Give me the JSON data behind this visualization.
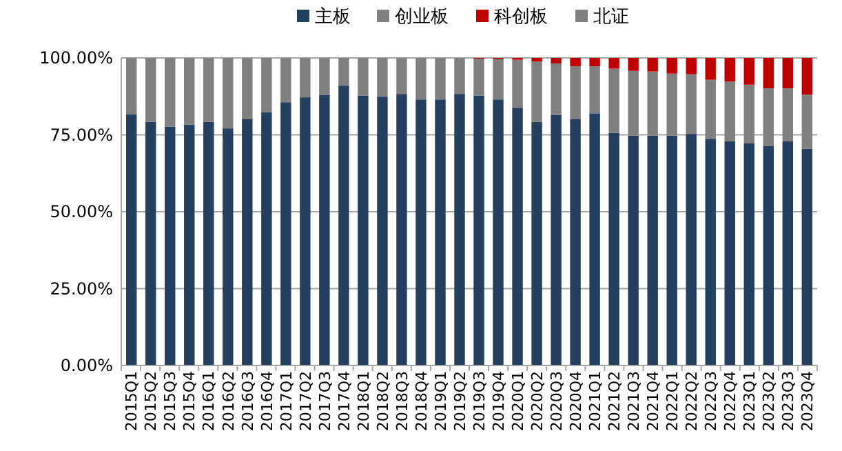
{
  "chart_data": {
    "type": "bar",
    "stacked": true,
    "legend": "top",
    "grid": "y",
    "categories": [
      "2015Q1",
      "2015Q2",
      "2015Q3",
      "2015Q4",
      "2016Q1",
      "2016Q2",
      "2016Q3",
      "2016Q4",
      "2017Q1",
      "2017Q2",
      "2017Q3",
      "2017Q4",
      "2018Q1",
      "2018Q2",
      "2018Q3",
      "2018Q4",
      "2019Q1",
      "2019Q2",
      "2019Q3",
      "2019Q4",
      "2020Q1",
      "2020Q2",
      "2020Q3",
      "2020Q4",
      "2021Q1",
      "2021Q2",
      "2021Q3",
      "2021Q4",
      "2022Q1",
      "2022Q2",
      "2022Q3",
      "2022Q4",
      "2023Q1",
      "2023Q2",
      "2023Q3",
      "2023Q4"
    ],
    "ylim": [
      0,
      100
    ],
    "yticks": [
      {
        "value": 0,
        "label": "0.00%"
      },
      {
        "value": 25,
        "label": "25.00%"
      },
      {
        "value": 50,
        "label": "50.00%"
      },
      {
        "value": 75,
        "label": "75.00%"
      },
      {
        "value": 100,
        "label": "100.00%"
      }
    ],
    "series": [
      {
        "name": "主板",
        "color": "#243f60",
        "values": [
          81.7,
          79.2,
          77.7,
          78.3,
          79.2,
          77.1,
          80.2,
          82.4,
          85.6,
          87.2,
          88.0,
          91.0,
          87.8,
          87.4,
          88.3,
          86.5,
          86.5,
          88.3,
          87.8,
          86.5,
          83.8,
          79.2,
          81.5,
          80.2,
          82.0,
          75.6,
          74.7,
          74.7,
          74.7,
          75.3,
          73.7,
          72.9,
          72.2,
          71.3,
          72.9,
          70.5
        ]
      },
      {
        "name": "创业板",
        "color": "#808080",
        "values": [
          18.3,
          20.8,
          22.3,
          21.7,
          20.8,
          22.9,
          19.8,
          17.6,
          14.4,
          12.8,
          12.0,
          9.0,
          12.2,
          12.6,
          11.7,
          13.5,
          13.5,
          11.7,
          11.9,
          13.1,
          15.6,
          19.6,
          16.7,
          17.1,
          15.3,
          20.9,
          21.1,
          20.9,
          20.2,
          19.4,
          19.2,
          19.4,
          19.1,
          18.8,
          17.2,
          17.6
        ]
      },
      {
        "name": "科创板",
        "color": "#c00000",
        "values": [
          0,
          0,
          0,
          0,
          0,
          0,
          0,
          0,
          0,
          0,
          0,
          0,
          0,
          0,
          0,
          0,
          0,
          0,
          0.3,
          0.4,
          0.6,
          1.2,
          1.8,
          2.7,
          2.7,
          3.5,
          4.2,
          4.4,
          5.1,
          5.3,
          7.1,
          7.7,
          8.7,
          9.9,
          9.9,
          11.9
        ]
      },
      {
        "name": "北证",
        "color": "#7f7f7f",
        "values": [
          0,
          0,
          0,
          0,
          0,
          0,
          0,
          0,
          0,
          0,
          0,
          0,
          0,
          0,
          0,
          0,
          0,
          0,
          0,
          0,
          0,
          0,
          0,
          0,
          0,
          0,
          0,
          0,
          0,
          0,
          0,
          0,
          0,
          0,
          0,
          0
        ]
      }
    ]
  }
}
